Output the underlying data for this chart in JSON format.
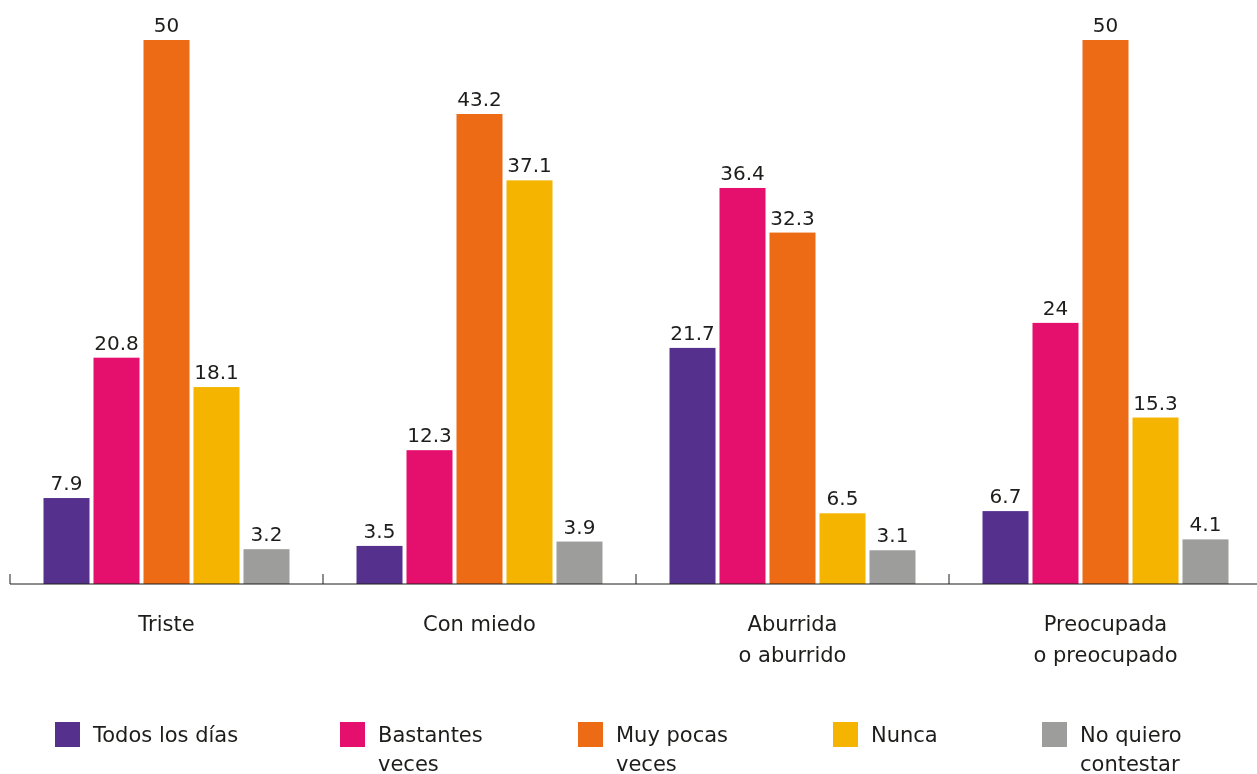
{
  "chart_data": {
    "type": "bar",
    "categories": [
      "Triste",
      "Con miedo",
      "Aburrida\no aburrido",
      "Preocupada\no preocupado"
    ],
    "series": [
      {
        "name": "Todos los días",
        "color": "#55308d",
        "values": [
          7.9,
          3.5,
          21.7,
          6.7
        ]
      },
      {
        "name": "Bastantes\nveces",
        "color": "#e5106d",
        "values": [
          20.8,
          12.3,
          36.4,
          24
        ]
      },
      {
        "name": "Muy pocas\nveces",
        "color": "#ec6b14",
        "values": [
          50,
          43.2,
          32.3,
          50
        ]
      },
      {
        "name": "Nunca",
        "color": "#f4b400",
        "values": [
          18.1,
          37.1,
          6.5,
          15.3
        ]
      },
      {
        "name": "No quiero\ncontestar",
        "color": "#9d9d9c",
        "values": [
          3.2,
          3.9,
          3.1,
          4.1
        ]
      }
    ],
    "data_labels": true,
    "legend": "bottom",
    "grid": false
  }
}
